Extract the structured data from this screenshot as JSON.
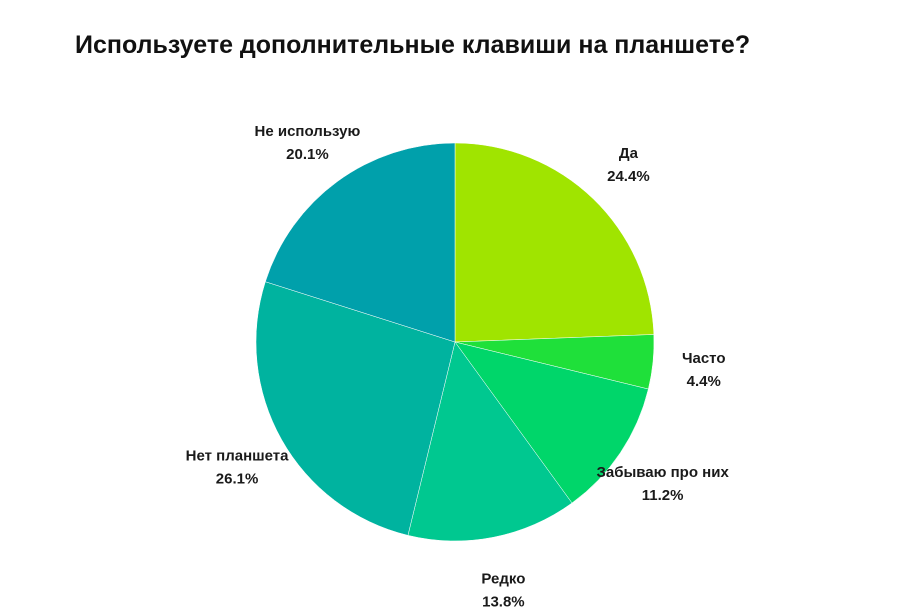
{
  "chart_data": {
    "type": "pie",
    "title": "Используете дополнительные клавиши на планшете?",
    "slices": [
      {
        "name": "Да",
        "value": 24.4,
        "value_label": "24.4%",
        "color": "#a0e400"
      },
      {
        "name": "Часто",
        "value": 4.4,
        "value_label": "4.4%",
        "color": "#1fe03a"
      },
      {
        "name": "Забываю про них",
        "value": 11.2,
        "value_label": "11.2%",
        "color": "#00d66a"
      },
      {
        "name": "Редко",
        "value": 13.8,
        "value_label": "13.8%",
        "color": "#00c890"
      },
      {
        "name": "Нет планшета",
        "value": 26.1,
        "value_label": "26.1%",
        "color": "#00b39f"
      },
      {
        "name": "Не использую",
        "value": 20.1,
        "value_label": "20.1%",
        "color": "#00a0ab"
      }
    ],
    "start_angle": "12 o'clock",
    "direction": "clockwise",
    "legend": "none"
  }
}
